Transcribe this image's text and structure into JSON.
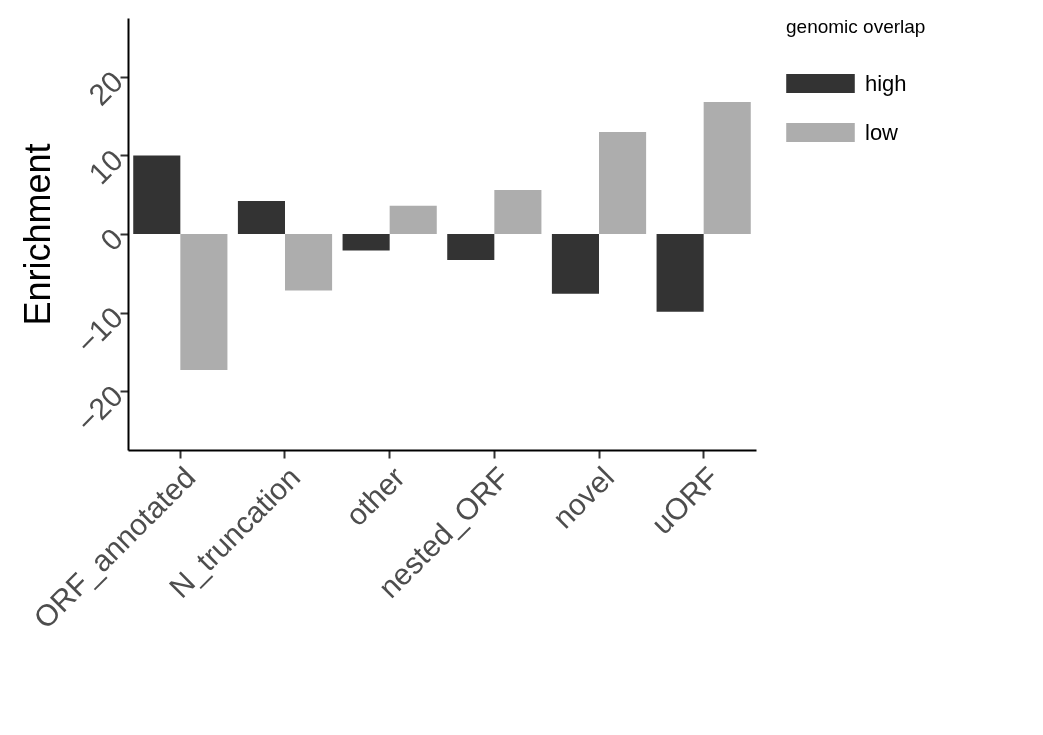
{
  "chart_data": {
    "type": "bar",
    "ylabel": "Enrichment",
    "legend_title": "genomic overlap",
    "categories": [
      "ORF_annotated",
      "N_truncation",
      "other",
      "nested_ORF",
      "novel",
      "uORF"
    ],
    "series": [
      {
        "name": "high",
        "color": "#333333",
        "values": [
          10.0,
          4.2,
          -2.1,
          -3.3,
          -7.6,
          -9.9
        ]
      },
      {
        "name": "low",
        "color": "#adadad",
        "values": [
          -17.3,
          -7.2,
          3.6,
          5.6,
          13.0,
          16.8
        ]
      }
    ],
    "ylim": [
      -27.5,
      27.5
    ],
    "yticks": [
      -20,
      -10,
      0,
      10,
      20
    ],
    "grid": false,
    "legend": "right"
  }
}
